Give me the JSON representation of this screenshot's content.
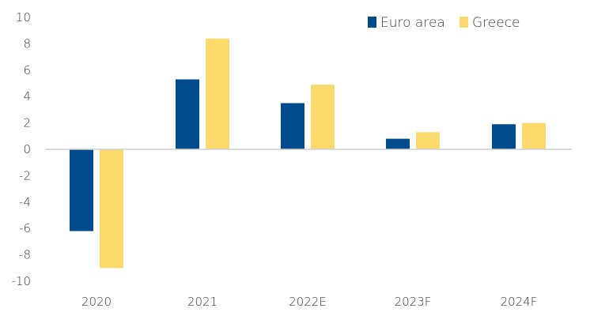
{
  "chart_data": {
    "type": "bar",
    "categories": [
      "2020",
      "2021",
      "2022E",
      "2023F",
      "2024F"
    ],
    "series": [
      {
        "name": "Euro area",
        "values": [
          -6.2,
          5.3,
          3.5,
          0.8,
          1.9
        ],
        "color": "#004B8D"
      },
      {
        "name": "Greece",
        "values": [
          -9.0,
          8.4,
          4.9,
          1.3,
          2.0
        ],
        "color": "#FCD96C"
      }
    ],
    "title": "",
    "xlabel": "",
    "ylabel": "",
    "ylim": [
      -10,
      10
    ],
    "yticks": [
      "10",
      "8",
      "6",
      "4",
      "2",
      "0",
      "-2",
      "-4",
      "-6",
      "-8",
      "-10"
    ],
    "grid": false,
    "legend_position": "top-right"
  }
}
